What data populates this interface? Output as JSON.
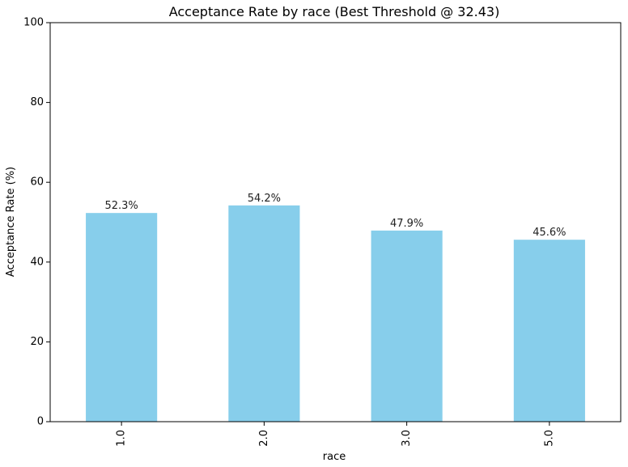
{
  "chart_data": {
    "type": "bar",
    "title": "Acceptance Rate by race (Best Threshold @ 32.43)",
    "xlabel": "race",
    "ylabel": "Acceptance Rate (%)",
    "categories": [
      "1.0",
      "2.0",
      "3.0",
      "5.0"
    ],
    "values": [
      52.3,
      54.2,
      47.9,
      45.6
    ],
    "data_labels": [
      "52.3%",
      "54.2%",
      "47.9%",
      "45.6%"
    ],
    "ylim": [
      0,
      100
    ],
    "yticks": [
      0,
      20,
      40,
      60,
      80,
      100
    ],
    "bar_color": "#87CEEB",
    "grid": false,
    "legend": "none"
  }
}
